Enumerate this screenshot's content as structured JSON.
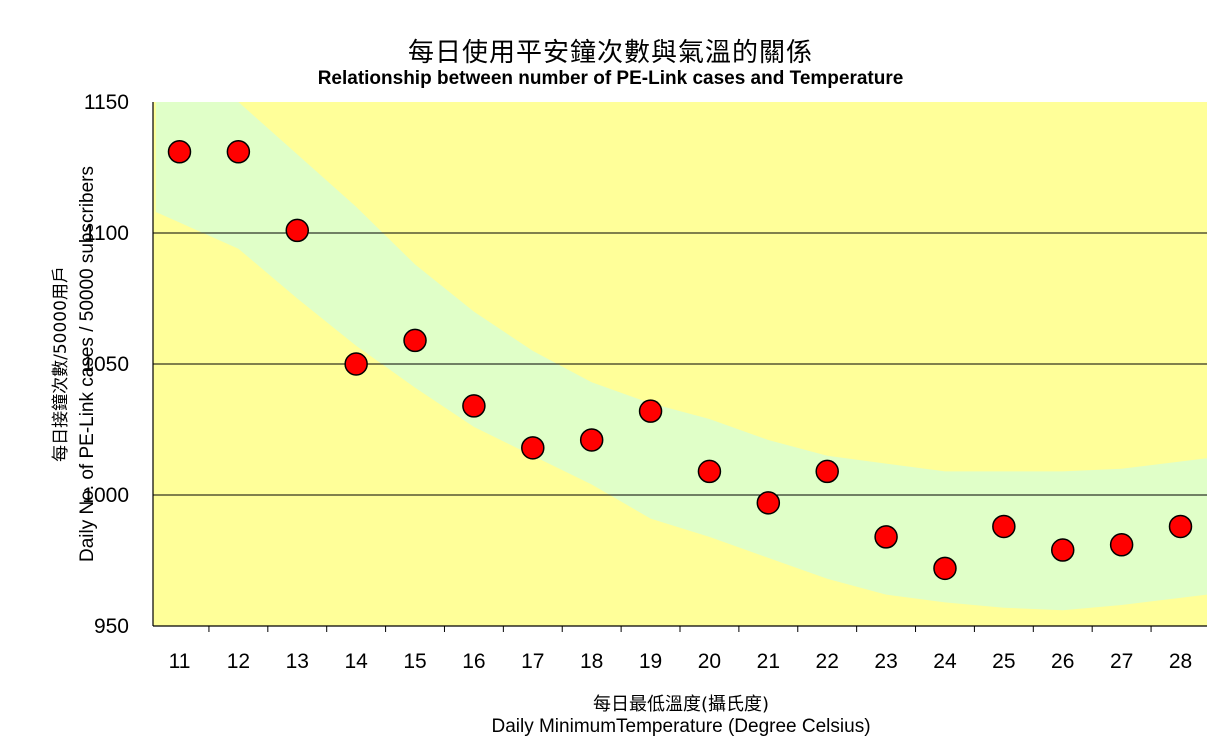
{
  "chart_data": {
    "type": "scatter",
    "title_zh": "每日使用平安鐘次數與氣溫的關係",
    "title": "Relationship between number of PE-Link cases and Temperature",
    "xlabel_zh": "每日最低溫度(攝氏度)",
    "xlabel": "Daily MinimumTemperature (Degree Celsius)",
    "ylabel_zh": "每日接鐘次數/50000用戶",
    "ylabel": "Daily No. of PE-Link cases / 50000 subscribers",
    "x": [
      11,
      12,
      13,
      14,
      15,
      16,
      17,
      18,
      19,
      20,
      21,
      22,
      23,
      24,
      25,
      26,
      27,
      28
    ],
    "y": [
      1131,
      1131,
      1101,
      1050,
      1059,
      1034,
      1018,
      1021,
      1032,
      1009,
      997,
      1009,
      984,
      972,
      988,
      979,
      981,
      988
    ],
    "ylim": [
      950,
      1150
    ],
    "yticks": [
      950,
      1000,
      1050,
      1100,
      1150
    ],
    "grid": "horizontal",
    "band": {
      "x": [
        10.6,
        12,
        13,
        14,
        15,
        16,
        17,
        18,
        19,
        20,
        21,
        22,
        23,
        24,
        25,
        26,
        27,
        28.6
      ],
      "upper": [
        1150,
        1150,
        1130,
        1110,
        1088,
        1070,
        1055,
        1043,
        1035,
        1029,
        1021,
        1015,
        1012,
        1009,
        1009,
        1009,
        1010,
        1014
      ],
      "lower": [
        1108,
        1094,
        1075,
        1057,
        1041,
        1026,
        1015,
        1004,
        991,
        984,
        976,
        968,
        962,
        959,
        957,
        956,
        958,
        962
      ]
    },
    "colors": {
      "plot_background": "#FFFF99",
      "band": "#E0FFC8",
      "marker_fill": "#FF0000",
      "marker_edge": "#000000",
      "gridline": "#000000"
    }
  }
}
